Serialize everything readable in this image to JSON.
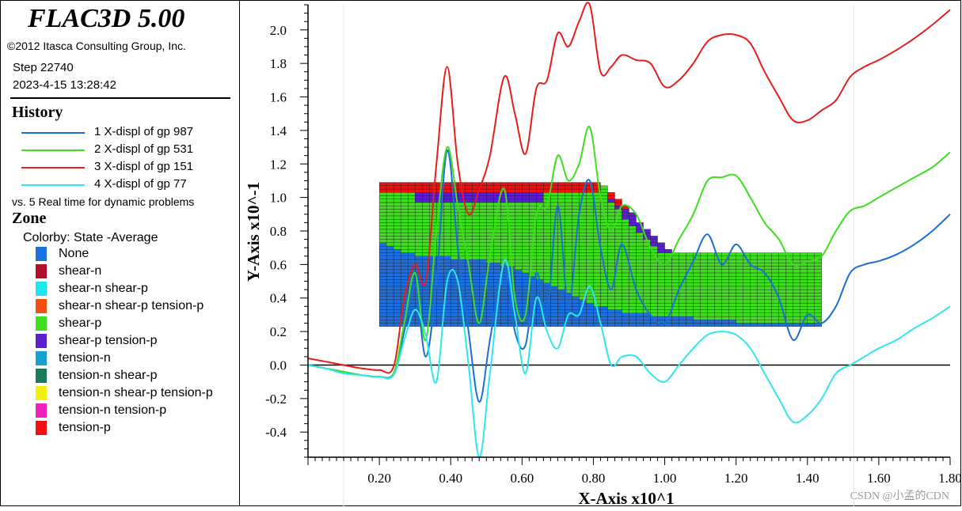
{
  "app": {
    "title": "FLAC3D 5.00",
    "copyright": "©2012 Itasca Consulting Group, Inc.",
    "step": "Step 22740",
    "datetime": "2023-4-15 13:28:42"
  },
  "history": {
    "heading": "History",
    "items": [
      {
        "label": "1 X-displ of gp 987",
        "color": "#1a6fd6"
      },
      {
        "label": "2 X-displ of gp 531",
        "color": "#3ede1e"
      },
      {
        "label": "3 X-displ of gp 151",
        "color": "#e81c1c"
      },
      {
        "label": "4 X-displ of gp 77",
        "color": "#2ee6ee"
      }
    ],
    "vs_text": "vs. 5 Real time for dynamic problems"
  },
  "zone": {
    "heading": "Zone",
    "colorby": "Colorby: State  -Average",
    "items": [
      {
        "label": "None",
        "color": "#1e6fe0"
      },
      {
        "label": "shear-n",
        "color": "#b0102a"
      },
      {
        "label": "shear-n shear-p",
        "color": "#1ee6f0"
      },
      {
        "label": "shear-n shear-p tension-p",
        "color": "#f05010"
      },
      {
        "label": "shear-p",
        "color": "#3ede1e"
      },
      {
        "label": "shear-p tension-p",
        "color": "#5a20d0"
      },
      {
        "label": "tension-n",
        "color": "#1aa0d0"
      },
      {
        "label": "tension-n shear-p",
        "color": "#1a7a5a"
      },
      {
        "label": "tension-n shear-p tension-p",
        "color": "#f0f010"
      },
      {
        "label": "tension-n tension-p",
        "color": "#f020c0"
      },
      {
        "label": "tension-p",
        "color": "#f01010"
      }
    ]
  },
  "watermark": "CSDN @小孟的CDN",
  "chart_data": {
    "type": "line",
    "xlabel": "X-Axis x10^1",
    "ylabel": "Y-Axis x10^-1",
    "xlim": [
      0,
      1.8
    ],
    "ylim": [
      -0.55,
      2.15
    ],
    "xticks": [
      "0.20",
      "0.40",
      "0.60",
      "0.80",
      "1.00",
      "1.20",
      "1.40",
      "1.60",
      "1.80"
    ],
    "yticks": [
      "-0.4",
      "-0.2",
      "0.0",
      "0.2",
      "0.4",
      "0.6",
      "0.8",
      "1.0",
      "1.2",
      "1.4",
      "1.6",
      "1.8",
      "2.0"
    ],
    "series": [
      {
        "name": "1 X-displ of gp 987",
        "color": "#1a6fd6",
        "x": [
          0,
          0.05,
          0.1,
          0.15,
          0.2,
          0.24,
          0.27,
          0.3,
          0.33,
          0.36,
          0.39,
          0.42,
          0.45,
          0.48,
          0.51,
          0.55,
          0.58,
          0.61,
          0.64,
          0.67,
          0.7,
          0.73,
          0.76,
          0.79,
          0.82,
          0.85,
          0.88,
          0.92,
          0.96,
          1.0,
          1.04,
          1.08,
          1.12,
          1.16,
          1.2,
          1.24,
          1.28,
          1.32,
          1.36,
          1.4,
          1.44,
          1.48,
          1.52,
          1.56,
          1.6,
          1.65,
          1.7,
          1.75,
          1.8
        ],
        "y": [
          0.0,
          -0.02,
          -0.04,
          -0.06,
          -0.07,
          -0.05,
          0.2,
          0.48,
          0.05,
          0.5,
          1.28,
          0.7,
          0.2,
          -0.22,
          0.15,
          0.6,
          0.2,
          0.12,
          0.55,
          0.3,
          0.95,
          0.35,
          0.9,
          1.1,
          0.7,
          0.45,
          0.72,
          0.45,
          0.3,
          0.25,
          0.45,
          0.62,
          0.78,
          0.6,
          0.72,
          0.6,
          0.55,
          0.4,
          0.15,
          0.3,
          0.25,
          0.35,
          0.55,
          0.6,
          0.62,
          0.66,
          0.72,
          0.8,
          0.9
        ]
      },
      {
        "name": "2 X-displ of gp 531",
        "color": "#3ede1e",
        "x": [
          0,
          0.05,
          0.1,
          0.15,
          0.2,
          0.24,
          0.27,
          0.3,
          0.33,
          0.36,
          0.39,
          0.42,
          0.45,
          0.48,
          0.51,
          0.55,
          0.58,
          0.61,
          0.64,
          0.67,
          0.7,
          0.73,
          0.76,
          0.79,
          0.82,
          0.85,
          0.88,
          0.92,
          0.96,
          1.0,
          1.04,
          1.08,
          1.12,
          1.16,
          1.2,
          1.24,
          1.28,
          1.32,
          1.36,
          1.4,
          1.44,
          1.48,
          1.52,
          1.56,
          1.6,
          1.65,
          1.7,
          1.75,
          1.8
        ],
        "y": [
          0.0,
          -0.02,
          -0.04,
          -0.06,
          -0.07,
          -0.05,
          0.25,
          0.55,
          0.15,
          0.8,
          1.3,
          0.95,
          0.6,
          0.25,
          0.65,
          1.05,
          0.4,
          0.3,
          0.9,
          0.95,
          1.25,
          1.1,
          1.2,
          1.42,
          1.0,
          0.8,
          0.95,
          0.9,
          0.7,
          0.6,
          0.75,
          0.9,
          1.1,
          1.12,
          1.13,
          1.0,
          0.85,
          0.75,
          0.6,
          0.62,
          0.65,
          0.8,
          0.92,
          0.95,
          1.0,
          1.06,
          1.12,
          1.18,
          1.27
        ]
      },
      {
        "name": "3 X-displ of gp 151",
        "color": "#e81c1c",
        "x": [
          0,
          0.05,
          0.1,
          0.15,
          0.2,
          0.24,
          0.27,
          0.3,
          0.33,
          0.36,
          0.39,
          0.42,
          0.45,
          0.48,
          0.51,
          0.55,
          0.58,
          0.61,
          0.64,
          0.67,
          0.7,
          0.73,
          0.76,
          0.79,
          0.82,
          0.85,
          0.88,
          0.92,
          0.96,
          1.0,
          1.04,
          1.08,
          1.12,
          1.16,
          1.2,
          1.24,
          1.28,
          1.32,
          1.36,
          1.4,
          1.44,
          1.48,
          1.52,
          1.56,
          1.6,
          1.65,
          1.7,
          1.75,
          1.8
        ],
        "y": [
          0.04,
          0.02,
          0.0,
          -0.02,
          -0.03,
          -0.01,
          0.4,
          0.6,
          0.5,
          1.2,
          1.78,
          1.2,
          0.9,
          1.05,
          1.25,
          1.72,
          1.5,
          1.26,
          1.65,
          1.7,
          1.98,
          1.9,
          2.05,
          2.15,
          1.75,
          1.78,
          1.85,
          1.82,
          1.8,
          1.66,
          1.7,
          1.8,
          1.93,
          1.97,
          1.97,
          1.92,
          1.75,
          1.6,
          1.46,
          1.46,
          1.52,
          1.58,
          1.72,
          1.78,
          1.82,
          1.88,
          1.95,
          2.03,
          2.12
        ]
      },
      {
        "name": "4 X-displ of gp 77",
        "color": "#2ee6ee",
        "x": [
          0,
          0.05,
          0.1,
          0.15,
          0.2,
          0.24,
          0.27,
          0.3,
          0.33,
          0.36,
          0.39,
          0.42,
          0.45,
          0.48,
          0.51,
          0.55,
          0.58,
          0.61,
          0.64,
          0.67,
          0.7,
          0.73,
          0.76,
          0.79,
          0.82,
          0.85,
          0.88,
          0.92,
          0.96,
          1.0,
          1.04,
          1.08,
          1.12,
          1.16,
          1.2,
          1.24,
          1.28,
          1.32,
          1.36,
          1.4,
          1.44,
          1.48,
          1.52,
          1.56,
          1.6,
          1.65,
          1.7,
          1.75,
          1.8
        ],
        "y": [
          0.0,
          -0.02,
          -0.05,
          -0.06,
          -0.07,
          -0.06,
          0.15,
          0.33,
          0.18,
          -0.1,
          0.5,
          0.5,
          0.0,
          -0.55,
          -0.05,
          0.62,
          0.3,
          -0.05,
          0.4,
          0.2,
          0.1,
          0.3,
          0.3,
          0.47,
          0.25,
          0.0,
          0.05,
          0.05,
          -0.05,
          -0.1,
          0.0,
          0.1,
          0.18,
          0.2,
          0.18,
          0.1,
          -0.05,
          -0.2,
          -0.34,
          -0.3,
          -0.2,
          -0.05,
          0.0,
          0.05,
          0.1,
          0.15,
          0.22,
          0.28,
          0.35
        ]
      }
    ]
  }
}
